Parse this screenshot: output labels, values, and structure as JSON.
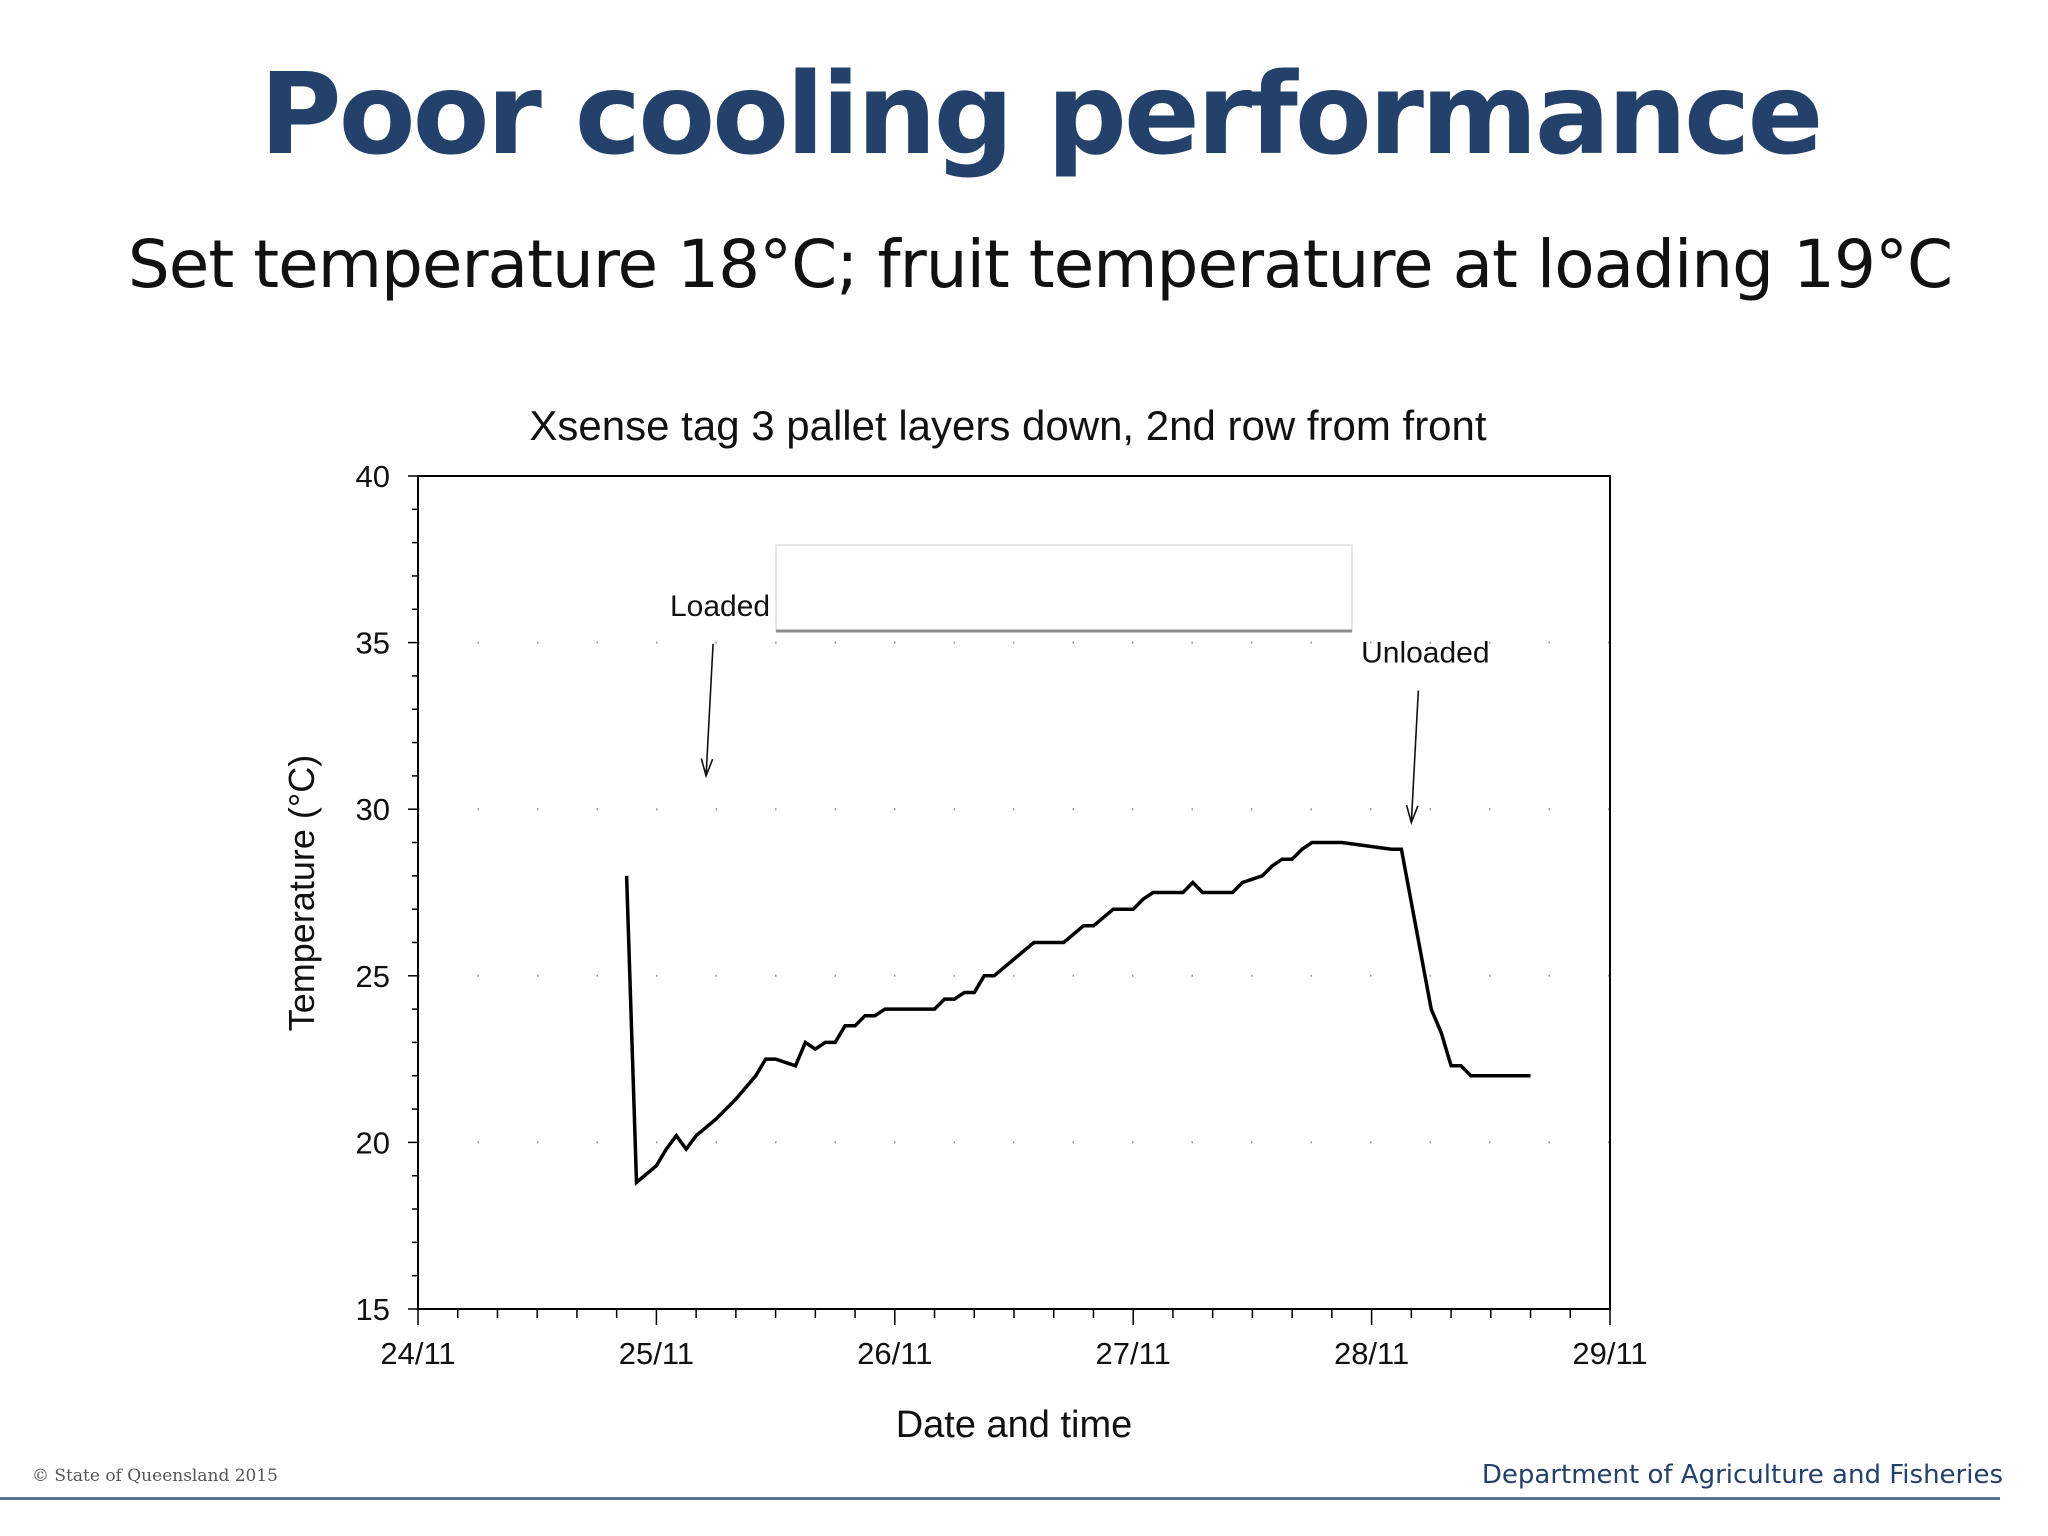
{
  "slide": {
    "title": "Poor cooling performance",
    "subtitle": "Set temperature 18°C; fruit temperature at loading 19°C"
  },
  "footer": {
    "copyright": "© State of Queensland 2015",
    "department": "Department of Agriculture and Fisheries",
    "rule_color": "#5a7396"
  },
  "colors": {
    "title": "#24416b",
    "line": "#000000"
  },
  "chart_data": {
    "type": "line",
    "title": "Xsense tag 3 pallet layers down, 2nd row from front",
    "xlabel": "Date and time",
    "ylabel": "Temperature (°C)",
    "xlim": [
      "24/11",
      "29/11"
    ],
    "ylim": [
      15,
      40
    ],
    "x_ticks": [
      "24/11",
      "25/11",
      "26/11",
      "27/11",
      "28/11",
      "29/11"
    ],
    "y_ticks": [
      15,
      20,
      25,
      30,
      35,
      40
    ],
    "grid": "dotted",
    "legend": "none",
    "series": [
      {
        "x": [
          "24/11 21:00",
          "24/11 22:00",
          "25/11 00:00",
          "25/11 01:00",
          "25/11 02:00",
          "25/11 03:00",
          "25/11 04:00",
          "25/11 06:00",
          "25/11 08:00",
          "25/11 10:00",
          "25/11 11:00",
          "25/11 12:00",
          "25/11 14:00",
          "25/11 15:00",
          "25/11 16:00",
          "25/11 17:00",
          "25/11 18:00",
          "25/11 19:00",
          "25/11 20:00",
          "25/11 21:00",
          "25/11 22:00",
          "25/11 23:00",
          "26/11 01:00",
          "26/11 04:00",
          "26/11 05:00",
          "26/11 06:00",
          "26/11 07:00",
          "26/11 08:00",
          "26/11 09:00",
          "26/11 10:00",
          "26/11 12:00",
          "26/11 14:00",
          "26/11 17:00",
          "26/11 19:00",
          "26/11 20:00",
          "26/11 22:00",
          "27/11 00:00",
          "27/11 01:00",
          "27/11 02:00",
          "27/11 05:00",
          "27/11 06:00",
          "27/11 07:00",
          "27/11 10:00",
          "27/11 11:00",
          "27/11 13:00",
          "27/11 14:00",
          "27/11 15:00",
          "27/11 16:00",
          "27/11 17:00",
          "27/11 18:00",
          "27/11 21:00",
          "28/11 02:00",
          "28/11 03:00",
          "28/11 06:00",
          "28/11 07:00",
          "28/11 08:00",
          "28/11 09:00",
          "28/11 10:00",
          "28/11 12:00",
          "28/11 13:00",
          "28/11 16:00"
        ],
        "y": [
          28.0,
          18.8,
          19.3,
          19.8,
          20.2,
          19.8,
          20.2,
          20.7,
          21.3,
          22.0,
          22.5,
          22.5,
          22.3,
          23.0,
          22.8,
          23.0,
          23.0,
          23.5,
          23.5,
          23.8,
          23.8,
          24.0,
          24.0,
          24.0,
          24.3,
          24.3,
          24.5,
          24.5,
          25.0,
          25.0,
          25.5,
          26.0,
          26.0,
          26.5,
          26.5,
          27.0,
          27.0,
          27.3,
          27.5,
          27.5,
          27.8,
          27.5,
          27.5,
          27.8,
          28.0,
          28.3,
          28.5,
          28.5,
          28.8,
          29.0,
          29.0,
          28.8,
          28.8,
          24.0,
          23.3,
          22.3,
          22.3,
          22.0,
          22.0,
          22.0,
          22.0
        ]
      }
    ],
    "annotations": [
      {
        "text": "Loaded",
        "points_to_x": "25/11 05:00",
        "points_to_y": 31.0
      },
      {
        "text": "Unloaded",
        "points_to_x": "28/11 04:00",
        "points_to_y": 29.6
      }
    ]
  }
}
